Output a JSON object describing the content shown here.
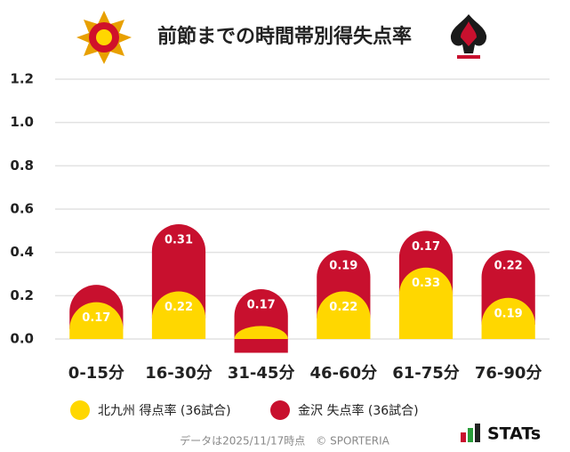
{
  "chart_data": {
    "type": "bar",
    "stacked": true,
    "title": "前節までの時間帯別得失点率",
    "categories": [
      "0-15分",
      "16-30分",
      "31-45分",
      "46-60分",
      "61-75分",
      "76-90分"
    ],
    "series": [
      {
        "name": "北九州 得点率 (36試合)",
        "color": "#ffd700",
        "values": [
          0.17,
          0.22,
          0.06,
          0.22,
          0.33,
          0.19
        ],
        "value_labels": [
          "0.17",
          "0.22",
          null,
          "0.22",
          "0.33",
          "0.19"
        ]
      },
      {
        "name": "金沢 失点率 (36試合)",
        "color": "#c8102e",
        "values": [
          0.08,
          0.31,
          0.17,
          0.19,
          0.17,
          0.22
        ],
        "value_labels": [
          null,
          "0.31",
          "0.17",
          "0.19",
          "0.17",
          "0.22"
        ]
      }
    ],
    "ylim": [
      0,
      1.2
    ],
    "yticks": [
      {
        "value": 0,
        "label": "0.0"
      },
      0.2,
      0.4,
      0.6,
      0.8,
      {
        "value": 1,
        "label": "1.0"
      },
      1.2
    ],
    "grid": true,
    "footnote": "データは2025/11/17時点　© SPORTERIA",
    "brand": "STATs"
  }
}
